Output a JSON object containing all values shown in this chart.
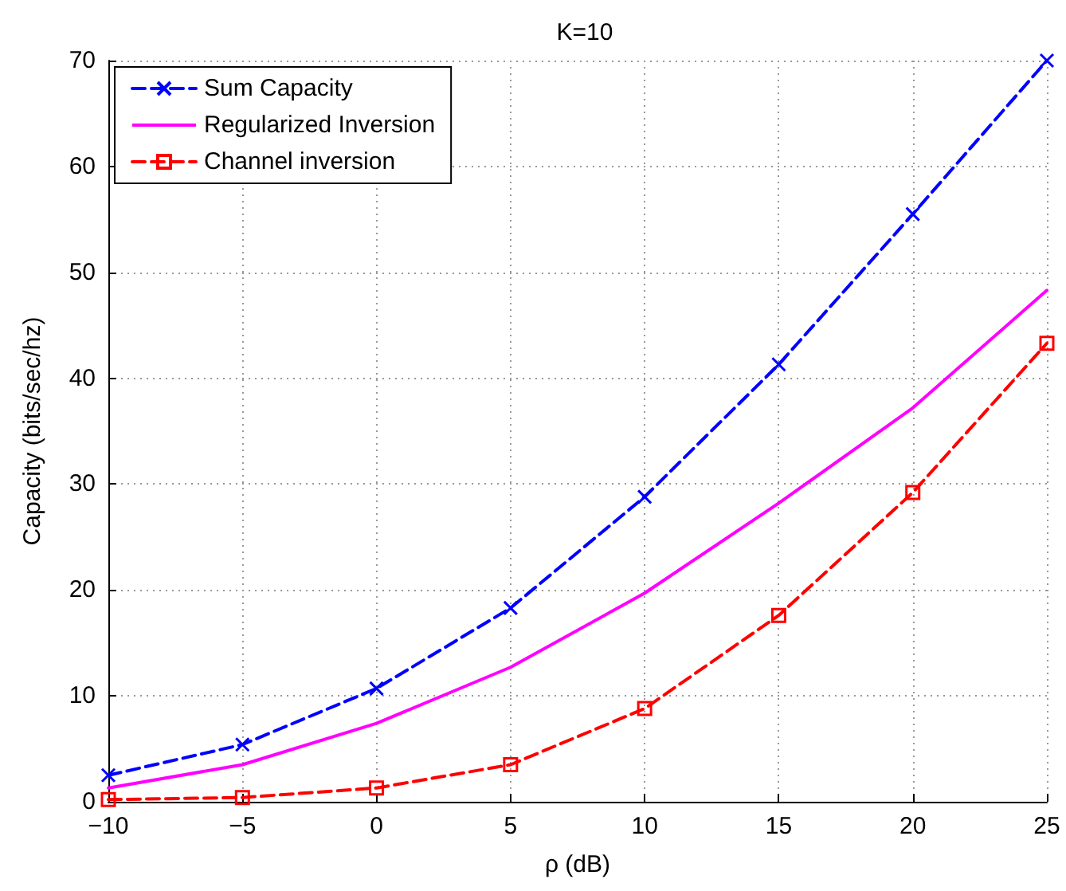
{
  "chart_data": {
    "type": "line",
    "title": "K=10",
    "xlabel": "ρ (dB)",
    "ylabel": "Capacity (bits/sec/hz)",
    "x": [
      -10,
      -5,
      0,
      5,
      10,
      15,
      20,
      25
    ],
    "series": [
      {
        "name": "Sum Capacity",
        "color": "#0000ff",
        "marker": "cross",
        "line_style": "dashed",
        "values": [
          2.5,
          5.4,
          10.7,
          18.3,
          28.8,
          41.3,
          55.5,
          70
        ]
      },
      {
        "name": "Regularized Inversion",
        "color": "#ff00ff",
        "marker": "none",
        "line_style": "solid",
        "values": [
          1.3,
          3.5,
          7.4,
          12.7,
          19.7,
          28.2,
          37.2,
          48.3
        ]
      },
      {
        "name": "Channel inversion",
        "color": "#ff0000",
        "marker": "square",
        "line_style": "dashed",
        "values": [
          0.2,
          0.4,
          1.3,
          3.5,
          8.8,
          17.6,
          29.2,
          43.3
        ]
      }
    ],
    "xlim": [
      -10,
      25
    ],
    "xticks": [
      -10,
      -5,
      0,
      5,
      10,
      15,
      20,
      25
    ],
    "ylim": [
      0,
      70
    ],
    "yticks": [
      0,
      10,
      20,
      30,
      40,
      50,
      60,
      70
    ],
    "grid": true,
    "legend": "top left"
  }
}
